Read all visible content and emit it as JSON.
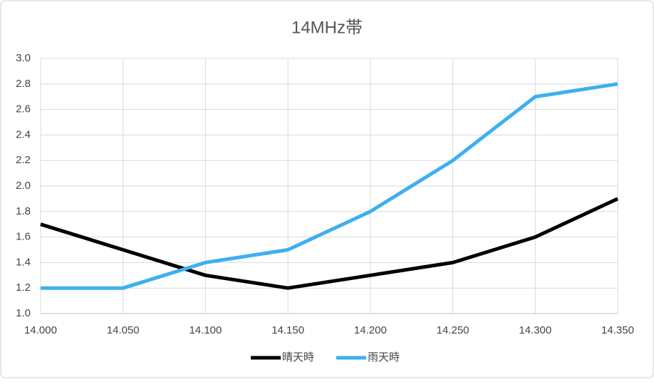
{
  "chart_data": {
    "type": "line",
    "title": "14MHz帯",
    "categories": [
      "14.000",
      "14.050",
      "14.100",
      "14.150",
      "14.200",
      "14.250",
      "14.300",
      "14.350"
    ],
    "series": [
      {
        "name": "晴天時",
        "color": "#000000",
        "values": [
          1.7,
          1.5,
          1.3,
          1.2,
          1.3,
          1.4,
          1.6,
          1.9
        ]
      },
      {
        "name": "雨天時",
        "color": "#3cb0f0",
        "values": [
          1.2,
          1.2,
          1.4,
          1.5,
          1.8,
          2.2,
          2.7,
          2.8
        ]
      }
    ],
    "ylim": [
      1.0,
      3.0
    ],
    "yticks": [
      {
        "value": 1.0,
        "label": "1.0"
      },
      1.2,
      1.4,
      1.6,
      1.8,
      {
        "value": 2.0,
        "label": "2.0"
      },
      2.2,
      2.4,
      2.6,
      2.8,
      {
        "value": 3.0,
        "label": "3.0"
      }
    ],
    "grid": true,
    "legend": "bottom"
  }
}
